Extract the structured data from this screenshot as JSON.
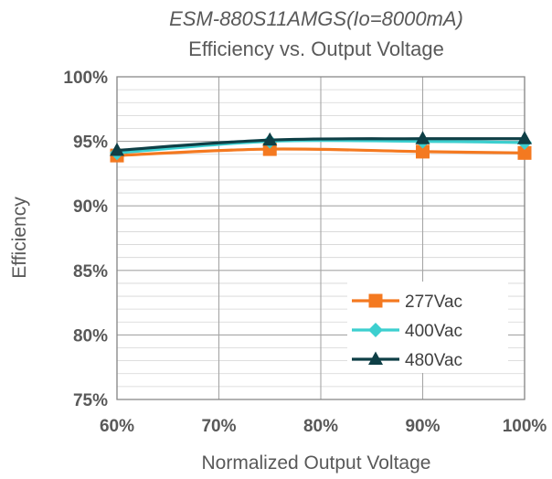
{
  "chart_data": {
    "type": "line",
    "title": "ESM-880S11AMGS(Io=8000mA)",
    "subtitle": "Efficiency vs. Output Voltage",
    "xlabel": "Normalized Output Voltage",
    "ylabel": "Efficiency",
    "x_ticks": [
      "60%",
      "70%",
      "80%",
      "90%",
      "100%"
    ],
    "y_ticks": [
      "75%",
      "80%",
      "85%",
      "90%",
      "95%",
      "100%"
    ],
    "xlim": [
      60,
      100
    ],
    "ylim": [
      75,
      100
    ],
    "grid": true,
    "legend_position": "bottom-right",
    "x": [
      60,
      75,
      90,
      100
    ],
    "series": [
      {
        "name": "277Vac",
        "values": [
          93.9,
          94.4,
          94.2,
          94.1
        ],
        "color": "#F47920",
        "marker": "square"
      },
      {
        "name": "400Vac",
        "values": [
          94.1,
          95.0,
          95.0,
          94.9
        ],
        "color": "#3CCFCF",
        "marker": "diamond"
      },
      {
        "name": "480Vac",
        "values": [
          94.3,
          95.1,
          95.2,
          95.2
        ],
        "color": "#0E3F46",
        "marker": "triangle"
      }
    ]
  }
}
